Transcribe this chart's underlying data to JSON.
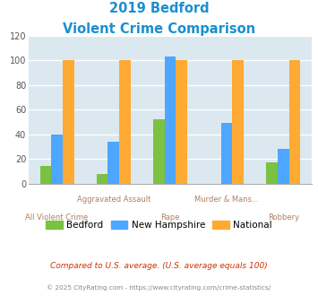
{
  "title_line1": "2019 Bedford",
  "title_line2": "Violent Crime Comparison",
  "bedford": [
    14,
    8,
    52,
    0,
    17
  ],
  "new_hampshire": [
    40,
    34,
    103,
    49,
    28
  ],
  "national": [
    100,
    100,
    100,
    100,
    100
  ],
  "bedford_color": "#7bc142",
  "nh_color": "#4da6ff",
  "national_color": "#ffaa33",
  "ylim": [
    0,
    120
  ],
  "yticks": [
    0,
    20,
    40,
    60,
    80,
    100,
    120
  ],
  "bg_color": "#dce8ef",
  "title_color": "#1a8fd1",
  "xlabel_top": [
    "",
    "Aggravated Assault",
    "",
    "Murder & Mans...",
    ""
  ],
  "xlabel_bot": [
    "All Violent Crime",
    "",
    "Rape",
    "",
    "Robbery"
  ],
  "xlabel_color": "#b08060",
  "legend_labels": [
    "Bedford",
    "New Hampshire",
    "National"
  ],
  "footnote1": "Compared to U.S. average. (U.S. average equals 100)",
  "footnote2": "© 2025 CityRating.com - https://www.cityrating.com/crime-statistics/",
  "footnote1_color": "#cc3300",
  "footnote2_color": "#888888"
}
